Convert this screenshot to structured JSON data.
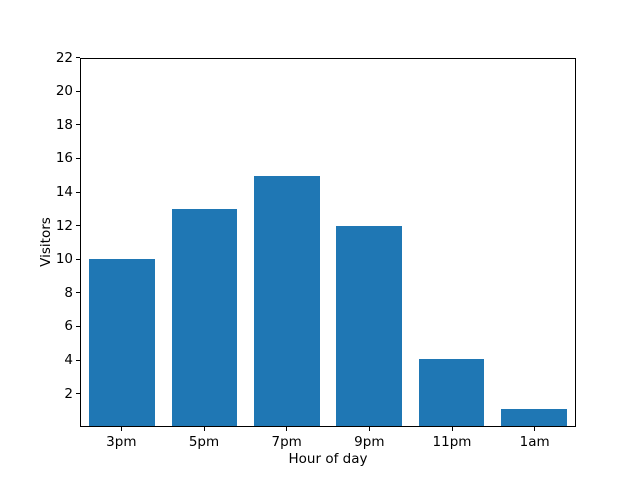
{
  "chart_data": {
    "type": "bar",
    "categories": [
      "3pm",
      "5pm",
      "7pm",
      "9pm",
      "11pm",
      "1am"
    ],
    "values": [
      10,
      13,
      15,
      12,
      4,
      1
    ],
    "xlabel": "Hour of day",
    "ylabel": "Visitors",
    "ylim": [
      0,
      22
    ],
    "yticks": [
      2,
      4,
      6,
      8,
      10,
      12,
      14,
      16,
      18,
      20,
      22
    ],
    "bar_color": "#1f77b4",
    "bar_width_fraction": 0.8,
    "spine_color": "#000000",
    "background_color": "#ffffff",
    "grid": false,
    "legend": false
  }
}
